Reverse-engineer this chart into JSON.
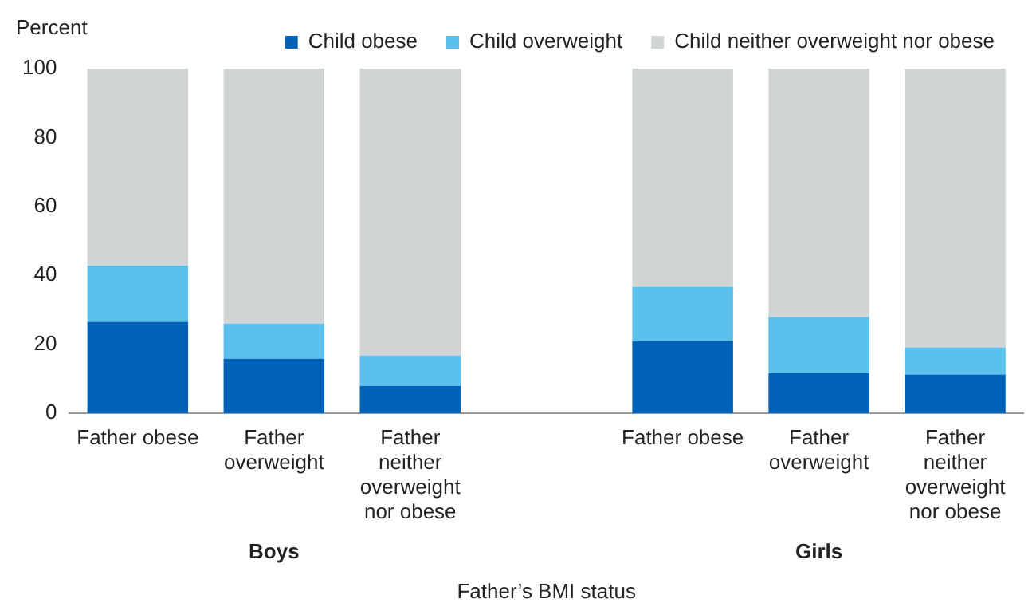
{
  "chart_data": {
    "type": "bar",
    "stacked": true,
    "ylabel": "Percent",
    "xlabel": "Father’s BMI status",
    "categories": [
      "Father obese",
      "Father overweight",
      "Father neither overweight nor obese",
      null,
      "Father obese",
      "Father overweight",
      "Father neither overweight nor obese"
    ],
    "series": [
      {
        "name": "Child obese",
        "color": "#0062b8",
        "values": [
          26.5,
          15.8,
          7.9,
          null,
          20.9,
          11.6,
          11.2
        ]
      },
      {
        "name": "Child overweight",
        "color": "#5bc0eb",
        "values": [
          16.3,
          10.2,
          8.8,
          null,
          15.8,
          16.3,
          7.9
        ]
      },
      {
        "name": "Child neither overweight nor obese",
        "color": "#d0d4d4",
        "values": [
          57.2,
          74,
          83.3,
          null,
          63.3,
          72.1,
          80.9
        ]
      }
    ],
    "annotations": [
      "Boys",
      "Girls"
    ],
    "ylim": [
      0,
      100
    ],
    "yticks": [
      0,
      20,
      40,
      60,
      80,
      100
    ],
    "grid": false,
    "legend": "top"
  }
}
